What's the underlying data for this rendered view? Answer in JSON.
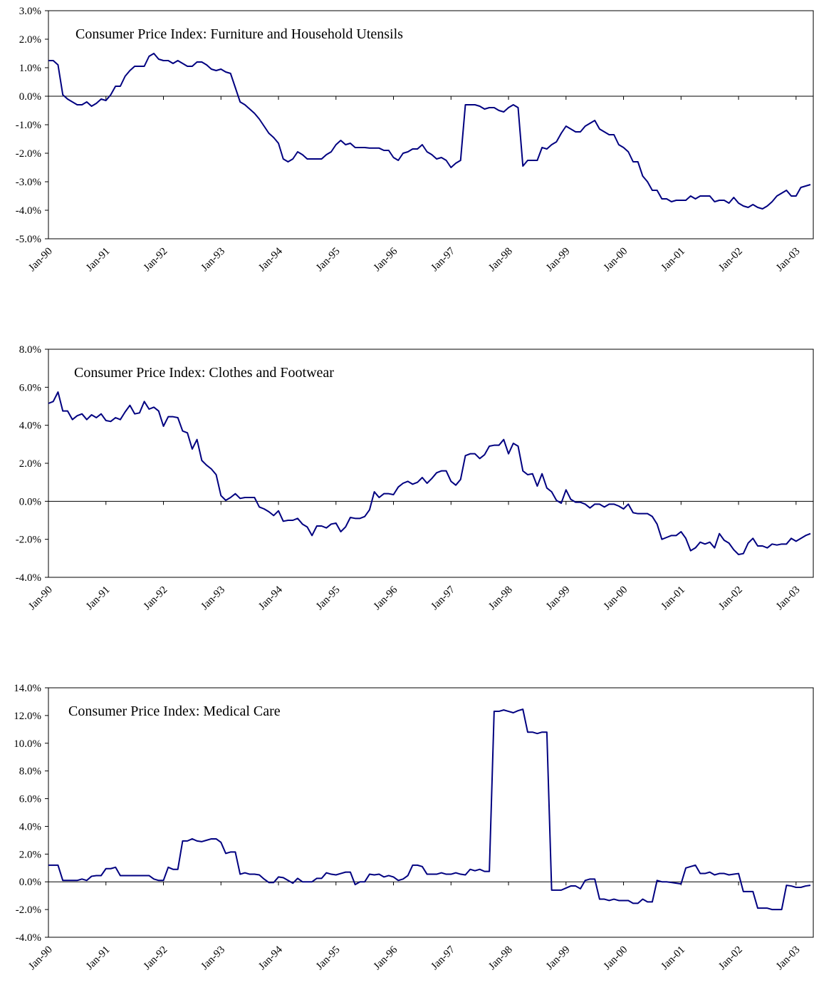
{
  "chart_data": [
    {
      "type": "line",
      "title": "Consumer Price Index: Furniture and Household Utensils",
      "categories": [
        "Jan-90",
        null,
        null,
        null,
        null,
        null,
        null,
        null,
        null,
        null,
        null,
        null,
        "Jan-91",
        null,
        null,
        null,
        null,
        null,
        null,
        null,
        null,
        null,
        null,
        null,
        "Jan-92",
        null,
        null,
        null,
        null,
        null,
        null,
        null,
        null,
        null,
        null,
        null,
        "Jan-93",
        null,
        null,
        null,
        null,
        null,
        null,
        null,
        null,
        null,
        null,
        null,
        "Jan-94",
        null,
        null,
        null,
        null,
        null,
        null,
        null,
        null,
        null,
        null,
        null,
        "Jan-95",
        null,
        null,
        null,
        null,
        null,
        null,
        null,
        null,
        null,
        null,
        null,
        "Jan-96",
        null,
        null,
        null,
        null,
        null,
        null,
        null,
        null,
        null,
        null,
        null,
        "Jan-97",
        null,
        null,
        null,
        null,
        null,
        null,
        null,
        null,
        null,
        null,
        null,
        "Jan-98",
        null,
        null,
        null,
        null,
        null,
        null,
        null,
        null,
        null,
        null,
        null,
        "Jan-99",
        null,
        null,
        null,
        null,
        null,
        null,
        null,
        null,
        null,
        null,
        null,
        "Jan-00",
        null,
        null,
        null,
        null,
        null,
        null,
        null,
        null,
        null,
        null,
        null,
        "Jan-01",
        null,
        null,
        null,
        null,
        null,
        null,
        null,
        null,
        null,
        null,
        null,
        "Jan-02",
        null,
        null,
        null,
        null,
        null,
        null,
        null,
        null,
        null,
        null,
        null,
        "Jan-03",
        null,
        null,
        null
      ],
      "color": "#000080",
      "values": [
        1.25,
        1.25,
        1.1,
        0.05,
        -0.1,
        -0.2,
        -0.3,
        -0.3,
        -0.2,
        -0.35,
        -0.25,
        -0.1,
        -0.15,
        0.05,
        0.35,
        0.35,
        0.7,
        0.9,
        1.05,
        1.05,
        1.05,
        1.4,
        1.5,
        1.3,
        1.25,
        1.25,
        1.15,
        1.25,
        1.15,
        1.05,
        1.05,
        1.2,
        1.2,
        1.1,
        0.95,
        0.9,
        0.95,
        0.85,
        0.8,
        0.3,
        -0.2,
        -0.3,
        -0.45,
        -0.6,
        -0.8,
        -1.05,
        -1.3,
        -1.45,
        -1.65,
        -2.2,
        -2.3,
        -2.2,
        -1.95,
        -2.05,
        -2.2,
        -2.2,
        -2.2,
        -2.2,
        -2.05,
        -1.95,
        -1.7,
        -1.55,
        -1.7,
        -1.65,
        -1.8,
        -1.8,
        -1.8,
        -1.82,
        -1.82,
        -1.82,
        -1.9,
        -1.9,
        -2.15,
        -2.25,
        -2.0,
        -1.95,
        -1.85,
        -1.85,
        -1.7,
        -1.95,
        -2.05,
        -2.2,
        -2.15,
        -2.25,
        -2.5,
        -2.35,
        -2.25,
        -0.3,
        -0.3,
        -0.3,
        -0.35,
        -0.45,
        -0.4,
        -0.4,
        -0.5,
        -0.55,
        -0.4,
        -0.3,
        -0.4,
        -2.45,
        -2.25,
        -2.25,
        -2.25,
        -1.8,
        -1.85,
        -1.7,
        -1.6,
        -1.3,
        -1.05,
        -1.15,
        -1.25,
        -1.25,
        -1.05,
        -0.95,
        -0.85,
        -1.15,
        -1.25,
        -1.35,
        -1.35,
        -1.7,
        -1.8,
        -1.95,
        -2.3,
        -2.3,
        -2.8,
        -3.0,
        -3.3,
        -3.3,
        -3.6,
        -3.6,
        -3.7,
        -3.65,
        -3.65,
        -3.65,
        -3.5,
        -3.6,
        -3.5,
        -3.5,
        -3.5,
        -3.7,
        -3.65,
        -3.65,
        -3.75,
        -3.55,
        -3.75,
        -3.85,
        -3.9,
        -3.8,
        -3.9,
        -3.95,
        -3.85,
        -3.7,
        -3.5,
        -3.4,
        -3.3,
        -3.5,
        -3.5,
        -3.2,
        -3.15,
        -3.1
      ],
      "ylim": [
        -5,
        3
      ],
      "yticks": [
        {
          "value": -5,
          "label": "-5.0%"
        },
        {
          "value": -4,
          "label": "-4.0%"
        },
        {
          "value": -3,
          "label": "-3.0%"
        },
        {
          "value": -2,
          "label": "-2.0%"
        },
        {
          "value": -1,
          "label": "-1.0%"
        },
        {
          "value": 0,
          "label": "0.0%"
        },
        {
          "value": 1,
          "label": "1.0%"
        },
        {
          "value": 2,
          "label": "2.0%"
        },
        {
          "value": 3,
          "label": "3.0%"
        }
      ]
    },
    {
      "type": "line",
      "title": "Consumer Price Index: Clothes and Footwear",
      "categories": [
        "Jan-90",
        null,
        null,
        null,
        null,
        null,
        null,
        null,
        null,
        null,
        null,
        null,
        "Jan-91",
        null,
        null,
        null,
        null,
        null,
        null,
        null,
        null,
        null,
        null,
        null,
        "Jan-92",
        null,
        null,
        null,
        null,
        null,
        null,
        null,
        null,
        null,
        null,
        null,
        "Jan-93",
        null,
        null,
        null,
        null,
        null,
        null,
        null,
        null,
        null,
        null,
        null,
        "Jan-94",
        null,
        null,
        null,
        null,
        null,
        null,
        null,
        null,
        null,
        null,
        null,
        "Jan-95",
        null,
        null,
        null,
        null,
        null,
        null,
        null,
        null,
        null,
        null,
        null,
        "Jan-96",
        null,
        null,
        null,
        null,
        null,
        null,
        null,
        null,
        null,
        null,
        null,
        "Jan-97",
        null,
        null,
        null,
        null,
        null,
        null,
        null,
        null,
        null,
        null,
        null,
        "Jan-98",
        null,
        null,
        null,
        null,
        null,
        null,
        null,
        null,
        null,
        null,
        null,
        "Jan-99",
        null,
        null,
        null,
        null,
        null,
        null,
        null,
        null,
        null,
        null,
        null,
        "Jan-00",
        null,
        null,
        null,
        null,
        null,
        null,
        null,
        null,
        null,
        null,
        null,
        "Jan-01",
        null,
        null,
        null,
        null,
        null,
        null,
        null,
        null,
        null,
        null,
        null,
        "Jan-02",
        null,
        null,
        null,
        null,
        null,
        null,
        null,
        null,
        null,
        null,
        null,
        "Jan-03",
        null,
        null,
        null
      ],
      "color": "#000080",
      "values": [
        5.15,
        5.25,
        5.75,
        4.75,
        4.75,
        4.3,
        4.5,
        4.6,
        4.3,
        4.55,
        4.4,
        4.6,
        4.25,
        4.2,
        4.4,
        4.3,
        4.7,
        5.05,
        4.6,
        4.65,
        5.25,
        4.85,
        4.95,
        4.75,
        3.95,
        4.45,
        4.45,
        4.4,
        3.7,
        3.6,
        2.75,
        3.25,
        2.15,
        1.9,
        1.7,
        1.4,
        0.3,
        0.05,
        0.2,
        0.4,
        0.15,
        0.2,
        0.2,
        0.2,
        -0.3,
        -0.4,
        -0.55,
        -0.75,
        -0.5,
        -1.05,
        -1.0,
        -1.0,
        -0.9,
        -1.2,
        -1.35,
        -1.8,
        -1.3,
        -1.3,
        -1.4,
        -1.2,
        -1.15,
        -1.6,
        -1.35,
        -0.85,
        -0.9,
        -0.9,
        -0.8,
        -0.45,
        0.5,
        0.2,
        0.4,
        0.4,
        0.35,
        0.75,
        0.95,
        1.05,
        0.9,
        1.0,
        1.25,
        0.95,
        1.2,
        1.5,
        1.6,
        1.6,
        1.05,
        0.85,
        1.15,
        2.4,
        2.5,
        2.5,
        2.25,
        2.45,
        2.9,
        2.95,
        2.95,
        3.25,
        2.5,
        3.05,
        2.9,
        1.6,
        1.4,
        1.45,
        0.8,
        1.45,
        0.7,
        0.5,
        0.05,
        -0.1,
        0.6,
        0.1,
        -0.05,
        -0.05,
        -0.15,
        -0.35,
        -0.15,
        -0.15,
        -0.3,
        -0.15,
        -0.15,
        -0.25,
        -0.4,
        -0.15,
        -0.6,
        -0.65,
        -0.65,
        -0.65,
        -0.8,
        -1.2,
        -2.0,
        -1.9,
        -1.8,
        -1.8,
        -1.6,
        -1.95,
        -2.6,
        -2.45,
        -2.15,
        -2.25,
        -2.15,
        -2.45,
        -1.7,
        -2.05,
        -2.2,
        -2.55,
        -2.8,
        -2.75,
        -2.2,
        -1.95,
        -2.35,
        -2.35,
        -2.45,
        -2.25,
        -2.3,
        -2.25,
        -2.25,
        -1.95,
        -2.1,
        -1.95,
        -1.8,
        -1.7
      ],
      "ylim": [
        -4,
        8
      ],
      "yticks": [
        {
          "value": -4,
          "label": "-4.0%"
        },
        {
          "value": -2,
          "label": "-2.0%"
        },
        {
          "value": 0,
          "label": "0.0%"
        },
        {
          "value": 2,
          "label": "2.0%"
        },
        {
          "value": 4,
          "label": "4.0%"
        },
        {
          "value": 6,
          "label": "6.0%"
        },
        {
          "value": 8,
          "label": "8.0%"
        }
      ]
    },
    {
      "type": "line",
      "title": "Consumer Price Index: Medical Care",
      "categories": [
        "Jan-90",
        null,
        null,
        null,
        null,
        null,
        null,
        null,
        null,
        null,
        null,
        null,
        "Jan-91",
        null,
        null,
        null,
        null,
        null,
        null,
        null,
        null,
        null,
        null,
        null,
        "Jan-92",
        null,
        null,
        null,
        null,
        null,
        null,
        null,
        null,
        null,
        null,
        null,
        "Jan-93",
        null,
        null,
        null,
        null,
        null,
        null,
        null,
        null,
        null,
        null,
        null,
        "Jan-94",
        null,
        null,
        null,
        null,
        null,
        null,
        null,
        null,
        null,
        null,
        null,
        "Jan-95",
        null,
        null,
        null,
        null,
        null,
        null,
        null,
        null,
        null,
        null,
        null,
        "Jan-96",
        null,
        null,
        null,
        null,
        null,
        null,
        null,
        null,
        null,
        null,
        null,
        "Jan-97",
        null,
        null,
        null,
        null,
        null,
        null,
        null,
        null,
        null,
        null,
        null,
        "Jan-98",
        null,
        null,
        null,
        null,
        null,
        null,
        null,
        null,
        null,
        null,
        null,
        "Jan-99",
        null,
        null,
        null,
        null,
        null,
        null,
        null,
        null,
        null,
        null,
        null,
        "Jan-00",
        null,
        null,
        null,
        null,
        null,
        null,
        null,
        null,
        null,
        null,
        null,
        "Jan-01",
        null,
        null,
        null,
        null,
        null,
        null,
        null,
        null,
        null,
        null,
        null,
        "Jan-02",
        null,
        null,
        null,
        null,
        null,
        null,
        null,
        null,
        null,
        null,
        null,
        "Jan-03",
        null,
        null,
        null
      ],
      "color": "#000080",
      "values": [
        1.2,
        1.2,
        1.2,
        0.1,
        0.1,
        0.1,
        0.1,
        0.2,
        0.1,
        0.4,
        0.45,
        0.45,
        0.95,
        0.95,
        1.05,
        0.45,
        0.45,
        0.45,
        0.45,
        0.45,
        0.45,
        0.45,
        0.2,
        0.1,
        0.1,
        1.05,
        0.9,
        0.9,
        2.95,
        2.95,
        3.1,
        2.95,
        2.9,
        3.0,
        3.1,
        3.1,
        2.85,
        2.05,
        2.15,
        2.15,
        0.55,
        0.65,
        0.55,
        0.55,
        0.5,
        0.2,
        -0.05,
        -0.05,
        0.35,
        0.3,
        0.1,
        -0.1,
        0.25,
        0.0,
        0.0,
        0.0,
        0.25,
        0.25,
        0.65,
        0.55,
        0.5,
        0.6,
        0.7,
        0.7,
        -0.2,
        0.0,
        0.0,
        0.55,
        0.5,
        0.55,
        0.35,
        0.45,
        0.35,
        0.1,
        0.2,
        0.45,
        1.2,
        1.2,
        1.1,
        0.55,
        0.55,
        0.55,
        0.65,
        0.55,
        0.55,
        0.65,
        0.55,
        0.5,
        0.9,
        0.8,
        0.9,
        0.75,
        0.75,
        12.3,
        12.3,
        12.4,
        12.3,
        12.2,
        12.35,
        12.45,
        10.8,
        10.8,
        10.7,
        10.8,
        10.8,
        -0.6,
        -0.6,
        -0.6,
        -0.45,
        -0.3,
        -0.3,
        -0.5,
        0.1,
        0.2,
        0.2,
        -1.25,
        -1.25,
        -1.35,
        -1.25,
        -1.35,
        -1.35,
        -1.35,
        -1.55,
        -1.55,
        -1.25,
        -1.45,
        -1.45,
        0.1,
        0.0,
        0.0,
        -0.05,
        -0.1,
        -0.15,
        1.0,
        1.1,
        1.2,
        0.6,
        0.6,
        0.7,
        0.5,
        0.6,
        0.6,
        0.5,
        0.55,
        0.6,
        -0.7,
        -0.7,
        -0.7,
        -1.9,
        -1.9,
        -1.9,
        -2.0,
        -2.0,
        -2.0,
        -0.25,
        -0.3,
        -0.4,
        -0.4,
        -0.3,
        -0.25
      ],
      "ylim": [
        -4,
        14
      ],
      "yticks": [
        {
          "value": -4,
          "label": "-4.0%"
        },
        {
          "value": -2,
          "label": "-2.0%"
        },
        {
          "value": 0,
          "label": "0.0%"
        },
        {
          "value": 2,
          "label": "2.0%"
        },
        {
          "value": 4,
          "label": "4.0%"
        },
        {
          "value": 6,
          "label": "6.0%"
        },
        {
          "value": 8,
          "label": "8.0%"
        },
        {
          "value": 10,
          "label": "10.0%"
        },
        {
          "value": 12,
          "label": "12.0%"
        },
        {
          "value": 14,
          "label": "14.0%"
        }
      ]
    }
  ]
}
